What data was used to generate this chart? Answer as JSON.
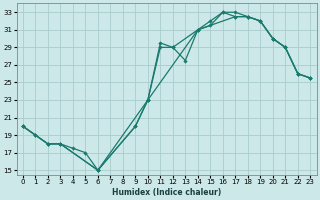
{
  "xlabel": "Humidex (Indice chaleur)",
  "bg_color": "#cde8e8",
  "grid_color": "#aacccc",
  "line_color": "#1a7a6e",
  "xlim": [
    -0.5,
    23.5
  ],
  "ylim": [
    14.5,
    34
  ],
  "xticks": [
    0,
    1,
    2,
    3,
    4,
    5,
    6,
    7,
    8,
    9,
    10,
    11,
    12,
    13,
    14,
    15,
    16,
    17,
    18,
    19,
    20,
    21,
    22,
    23
  ],
  "yticks": [
    15,
    17,
    19,
    21,
    23,
    25,
    27,
    29,
    31,
    33
  ],
  "line1_x": [
    0,
    1,
    2,
    3,
    6,
    9,
    10,
    11,
    12,
    14,
    15,
    16,
    17,
    18,
    19,
    20,
    21,
    22,
    23
  ],
  "line1_y": [
    20,
    19,
    18,
    18,
    15,
    20,
    23,
    29,
    29,
    31,
    32,
    33,
    33,
    32.5,
    32,
    30,
    29,
    26,
    25.5
  ],
  "line2_x": [
    0,
    1,
    2,
    3,
    6,
    9,
    10,
    11,
    12,
    13,
    14,
    15,
    16,
    17,
    18,
    19,
    20,
    21,
    22,
    23
  ],
  "line2_y": [
    20,
    19,
    18,
    18,
    15,
    20,
    23,
    29.5,
    29,
    27.5,
    31,
    31.5,
    33,
    32.5,
    32.5,
    32,
    30,
    29,
    26,
    25.5
  ],
  "line3_x": [
    0,
    2,
    3,
    4,
    5,
    6,
    10,
    14,
    17,
    18,
    19,
    20,
    21,
    22,
    23
  ],
  "line3_y": [
    20,
    18,
    18,
    17.5,
    17,
    15,
    23,
    31,
    32.5,
    32.5,
    32,
    30,
    29,
    26,
    25.5
  ]
}
